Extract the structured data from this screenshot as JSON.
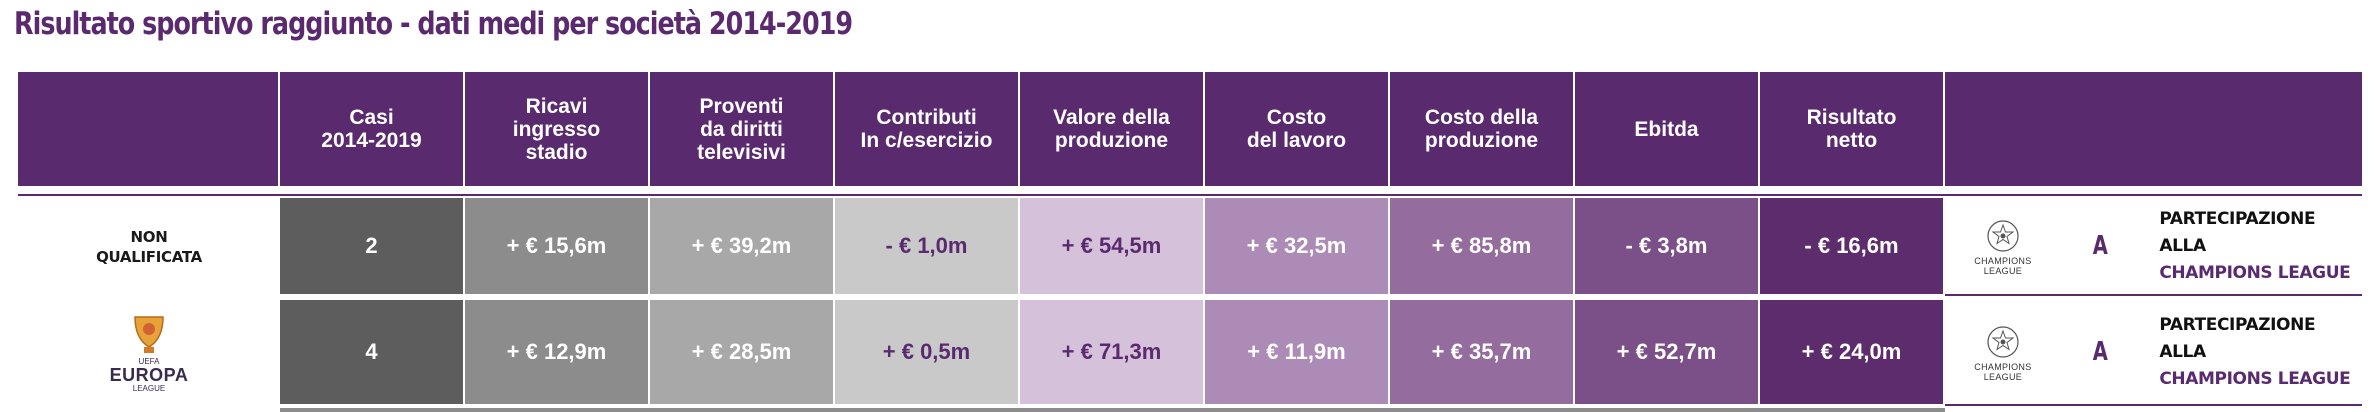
{
  "title": "Risultato sportivo raggiunto - dati medi per società 2014-2019",
  "headers": [
    "",
    "Casi\n2014-2019",
    "Ricavi\ningresso\nstadio",
    "Proventi\nda diritti\ntelevisivi",
    "Contributi\nIn c/esercizio",
    "Valore della\nproduzione",
    "Costo\ndel lavoro",
    "Costo della\nproduzione",
    "Ebitda",
    "Risultato\nnetto",
    ""
  ],
  "column_colors": [
    "#5d5d5d",
    "#8c8c8c",
    "#a8a8a8",
    "#c9c9c9",
    "#d5c1da",
    "#ac8bb6",
    "#946d9e",
    "#7b4f87",
    "#5c2c6c"
  ],
  "rows": [
    {
      "label": "NON\nQUALIFICATA",
      "values": [
        "2",
        "+ € 15,6m",
        "+ € 39,2m",
        "- € 1,0m",
        "+ € 54,5m",
        "+ € 32,5m",
        "+ € 85,8m",
        "- € 3,8m",
        "- € 16,6m"
      ],
      "logo_text": "CHAMPIONS\nLEAGUE",
      "letter": "A",
      "part_line1": "PARTECIPAZIONE ALLA",
      "part_line2": "CHAMPIONS LEAGUE"
    },
    {
      "label": "",
      "label_logo": "EUROPA",
      "label_logo_small": "UEFA",
      "label_logo_sub": "LEAGUE",
      "values": [
        "4",
        "+ € 12,9m",
        "+ € 28,5m",
        "+ € 0,5m",
        "+ € 71,3m",
        "+ € 11,9m",
        "+ € 35,7m",
        "+ € 52,7m",
        "+ € 24,0m"
      ],
      "logo_text": "CHAMPIONS\nLEAGUE",
      "letter": "A",
      "part_line1": "PARTECIPAZIONE ALLA",
      "part_line2": "CHAMPIONS LEAGUE"
    }
  ]
}
